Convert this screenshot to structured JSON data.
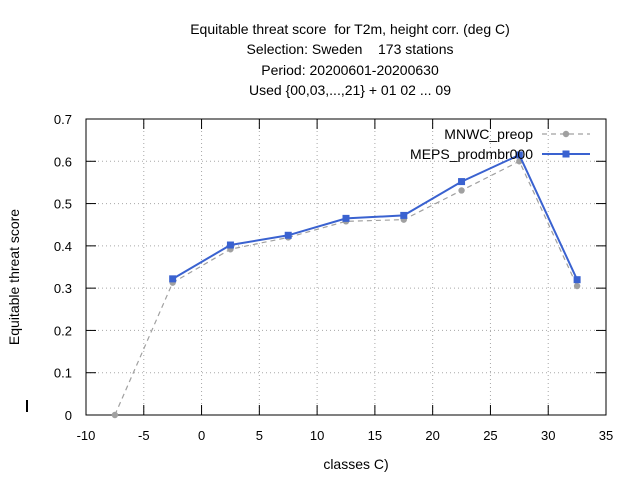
{
  "chart_data": {
    "type": "line",
    "title_lines": [
      "Equitable threat score  for T2m, height corr. (deg C)",
      "Selection: Sweden    173 stations",
      "Period: 20200601-20200630",
      "Used {00,03,...,21} + 01 02 ... 09"
    ],
    "xlabel": "classes C)",
    "ylabel": "Equitable threat score",
    "xlim": [
      -10,
      35
    ],
    "ylim": [
      0,
      0.7
    ],
    "xticks": [
      "-10",
      "-5",
      "0",
      "5",
      "10",
      "15",
      "20",
      "25",
      "30",
      "35"
    ],
    "yticks": [
      "0",
      "0.1",
      "0.2",
      "0.3",
      "0.4",
      "0.5",
      "0.6",
      "0.7"
    ],
    "grid": true,
    "legend_position": "top-right",
    "series": [
      {
        "name": "MNWC_preop",
        "color": "#a0a0a0",
        "style": "dashed",
        "x": [
          -7.5,
          -2.5,
          2.5,
          7.5,
          12.5,
          17.5,
          22.5,
          27.5,
          32.5
        ],
        "y": [
          0.0,
          0.313,
          0.392,
          0.42,
          0.458,
          0.462,
          0.531,
          0.6,
          0.305
        ]
      },
      {
        "name": "MEPS_prodmbr000",
        "color": "#3a62d0",
        "style": "solid",
        "x": [
          -2.5,
          2.5,
          7.5,
          12.5,
          17.5,
          22.5,
          27.5,
          32.5
        ],
        "y": [
          0.322,
          0.402,
          0.425,
          0.465,
          0.472,
          0.552,
          0.615,
          0.32
        ]
      }
    ]
  }
}
